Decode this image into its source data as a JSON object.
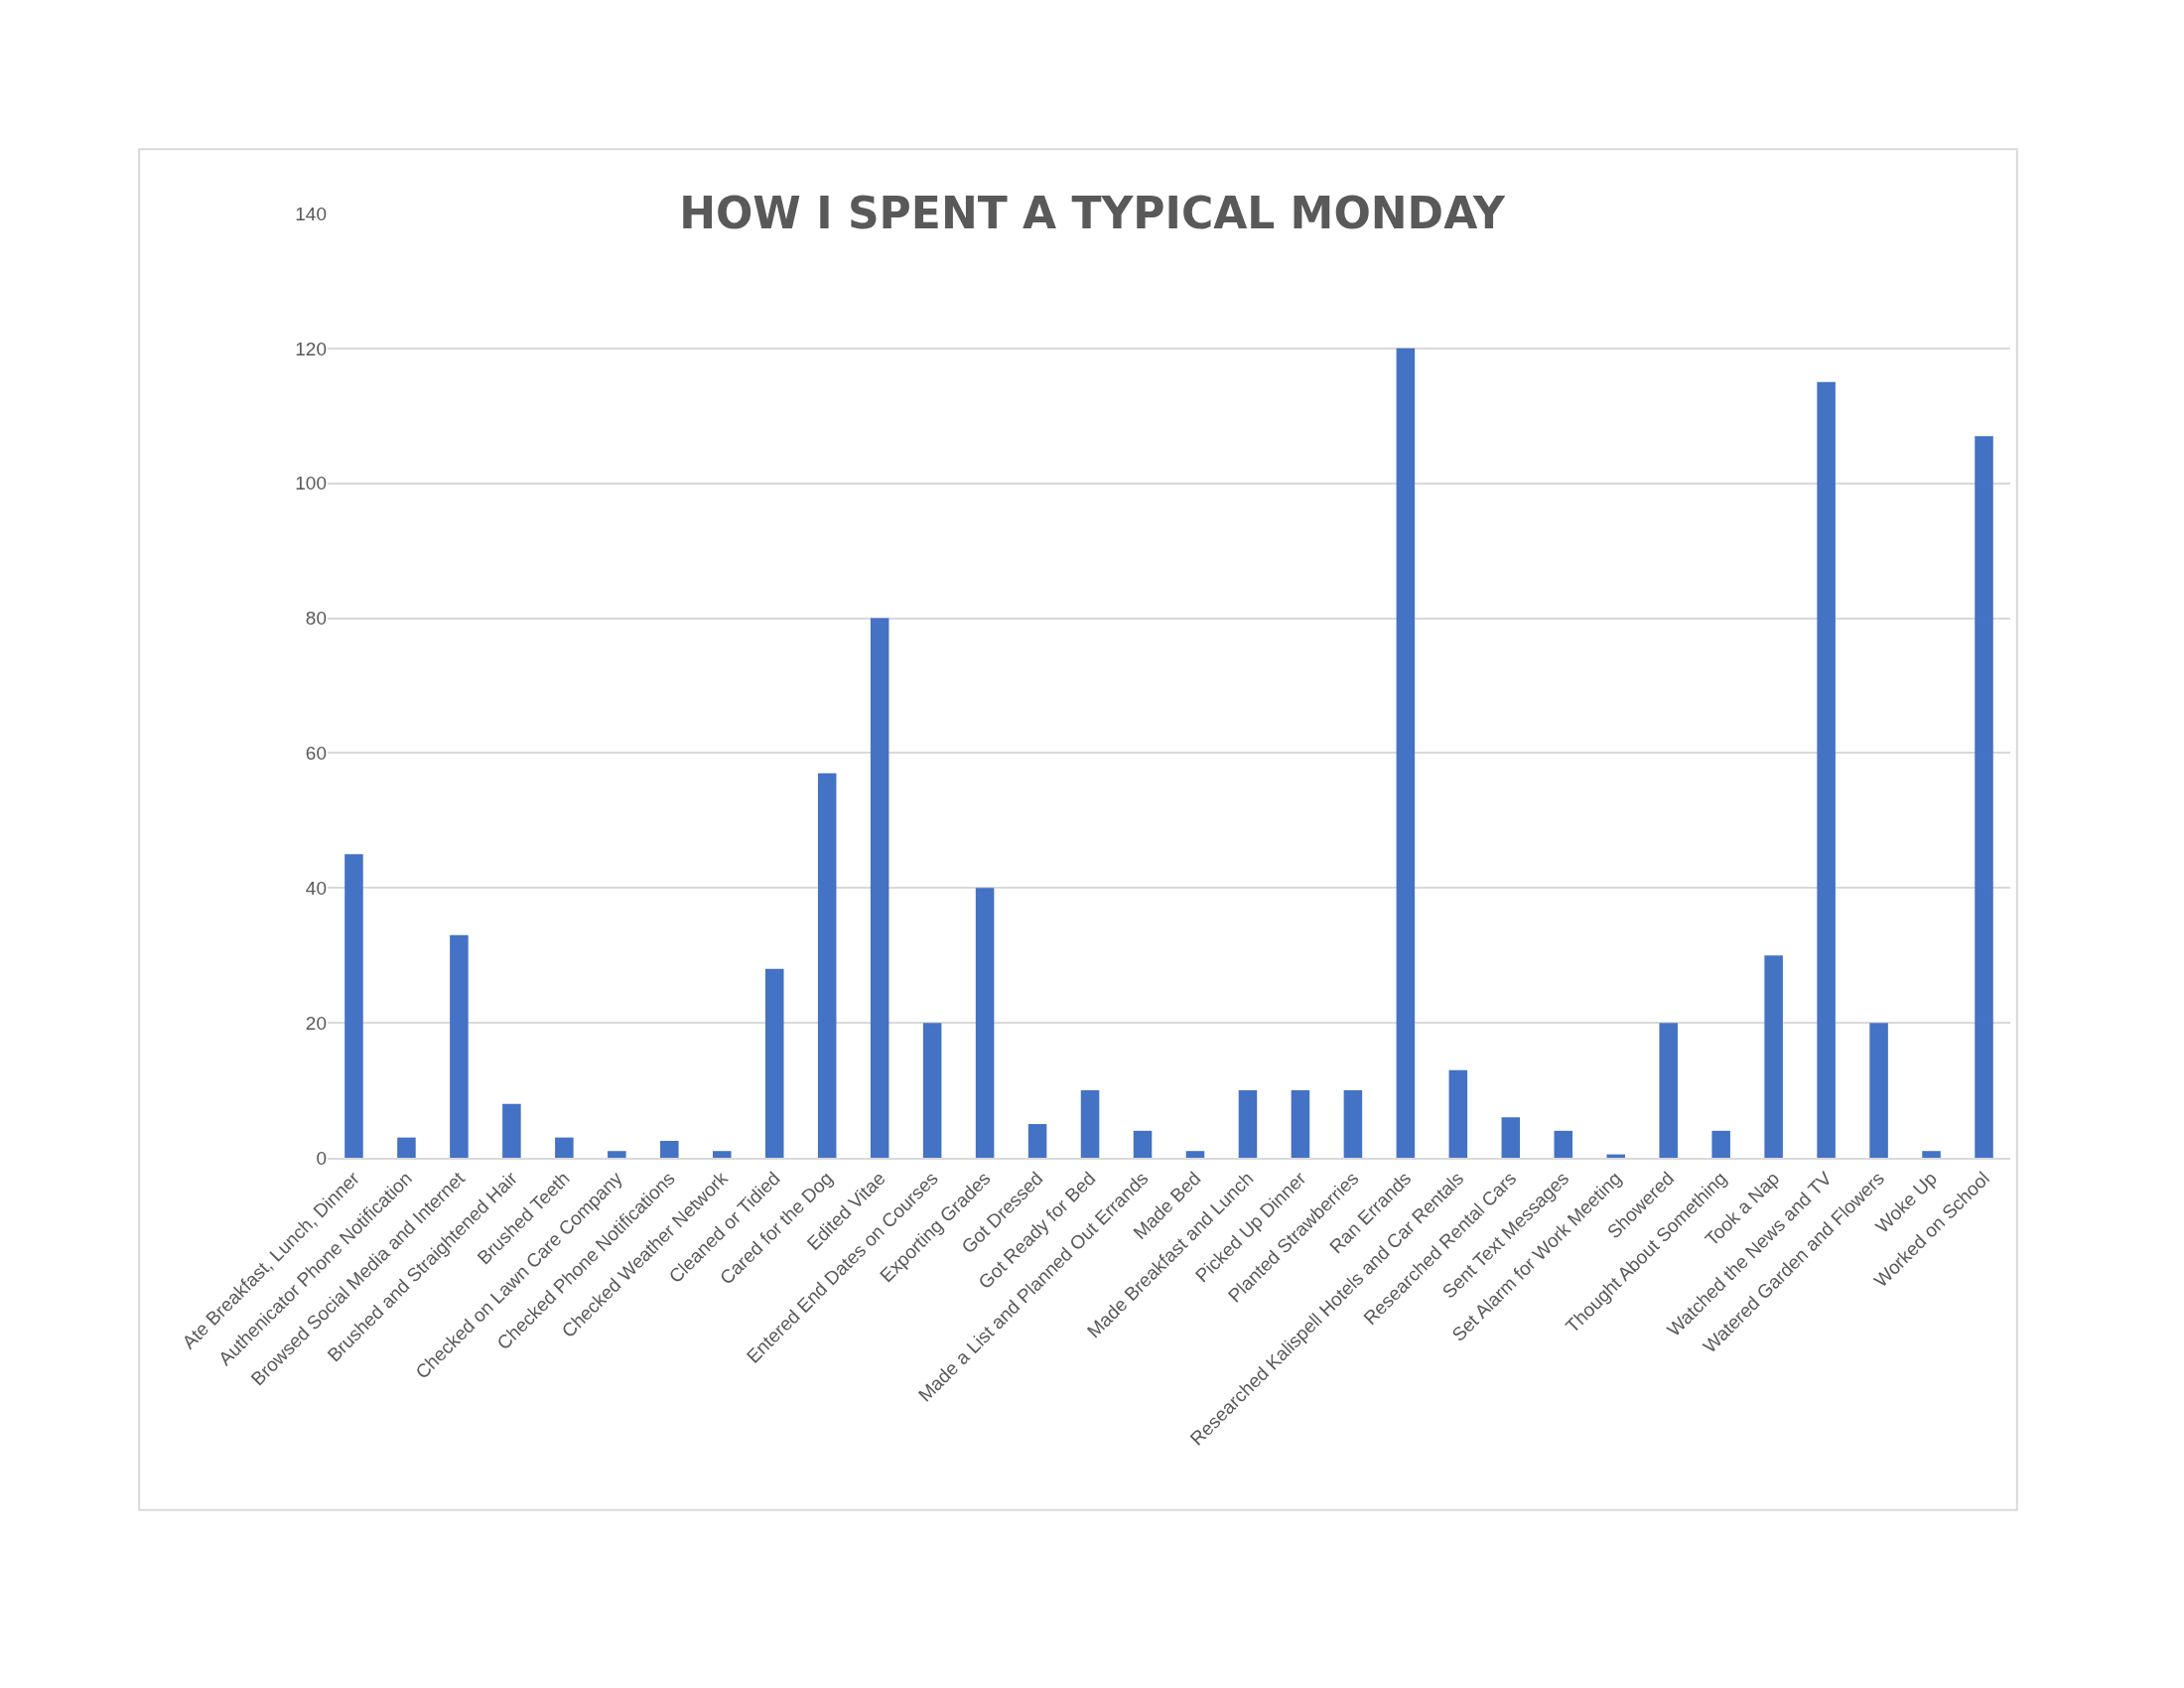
{
  "chart_data": {
    "type": "bar",
    "title": "HOW I SPENT A TYPICAL MONDAY",
    "categories": [
      "Ate Breakfast, Lunch, Dinner",
      "Authenicator Phone Notification",
      "Browsed Social Media and Internet",
      "Brushed and Straightened Hair",
      "Brushed Teeth",
      "Checked on Lawn Care Company",
      "Checked Phone Notifications",
      "Checked Weather Network",
      "Cleaned or Tidied",
      "Cared for the Dog",
      "Edited Vitae",
      "Entered End Dates on Courses",
      "Exporting Grades",
      "Got Dressed",
      "Got Ready for Bed",
      "Made a List and Planned Out Errands",
      "Made Bed",
      "Made Breakfast and Lunch",
      "Picked Up Dinner",
      "Planted Strawberries",
      "Ran Errands",
      "Researched Kalispell Hotels and Car Rentals",
      "Researched Rental Cars",
      "Sent Text Messages",
      "Set Alarm for Work Meeting",
      "Showered",
      "Thought About Something",
      "Took a Nap",
      "Watched the News and TV",
      "Watered Garden and Flowers",
      "Woke Up",
      "Worked on School"
    ],
    "values": [
      45,
      3,
      33,
      8,
      3,
      1,
      2.5,
      1,
      28,
      57,
      80,
      20,
      40,
      5,
      10,
      4,
      1,
      10,
      10,
      10,
      120,
      13,
      6,
      4,
      0.5,
      20,
      4,
      30,
      115,
      20,
      1,
      107
    ],
    "color": "#4472c4",
    "ylim": [
      0,
      140
    ],
    "yticks": [
      0,
      20,
      40,
      60,
      80,
      100,
      120,
      140
    ],
    "grid": "y"
  }
}
